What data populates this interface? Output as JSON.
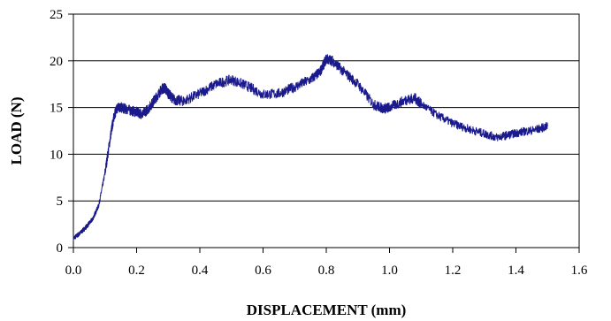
{
  "chart_data": {
    "type": "line",
    "title": "",
    "xlabel": "DISPLACEMENT (mm)",
    "ylabel": "LOAD (N)",
    "xlim": [
      0,
      1.6
    ],
    "ylim": [
      0,
      25
    ],
    "x_ticks": [
      0.0,
      0.2,
      0.4,
      0.6,
      0.8,
      1.0,
      1.2,
      1.4,
      1.6
    ],
    "x_tick_labels": [
      "0.0",
      "0.2",
      "0.4",
      "0.6",
      "0.8",
      "1.0",
      "1.2",
      "1.4",
      "1.6"
    ],
    "y_ticks": [
      0,
      5,
      10,
      15,
      20,
      25
    ],
    "y_tick_labels": [
      "0",
      "5",
      "10",
      "15",
      "20",
      "25"
    ],
    "grid": {
      "horizontal": true,
      "vertical": false
    },
    "legend": "none",
    "series_color": "#1a1a8c",
    "series": [
      {
        "x": [
          0.0,
          0.02,
          0.04,
          0.06,
          0.08,
          0.1,
          0.12,
          0.13,
          0.14,
          0.15,
          0.17,
          0.2,
          0.22,
          0.24,
          0.26,
          0.28,
          0.29,
          0.3,
          0.32,
          0.35,
          0.4,
          0.45,
          0.5,
          0.55,
          0.6,
          0.65,
          0.7,
          0.75,
          0.78,
          0.8,
          0.82,
          0.85,
          0.9,
          0.95,
          0.98,
          1.0,
          1.05,
          1.08,
          1.1,
          1.15,
          1.2,
          1.25,
          1.3,
          1.34,
          1.38,
          1.42,
          1.46,
          1.5
        ],
        "y": [
          1.0,
          1.5,
          2.2,
          3.0,
          4.5,
          8.0,
          12.5,
          14.3,
          15.0,
          15.0,
          14.8,
          14.5,
          14.3,
          15.0,
          16.0,
          17.0,
          17.1,
          16.5,
          15.8,
          15.7,
          16.5,
          17.5,
          18.0,
          17.3,
          16.4,
          16.5,
          17.2,
          18.0,
          18.8,
          20.2,
          20.0,
          19.0,
          17.5,
          15.3,
          14.9,
          15.0,
          15.8,
          16.0,
          15.4,
          14.2,
          13.3,
          12.7,
          12.2,
          11.8,
          12.1,
          12.4,
          12.6,
          13.0
        ]
      }
    ]
  }
}
